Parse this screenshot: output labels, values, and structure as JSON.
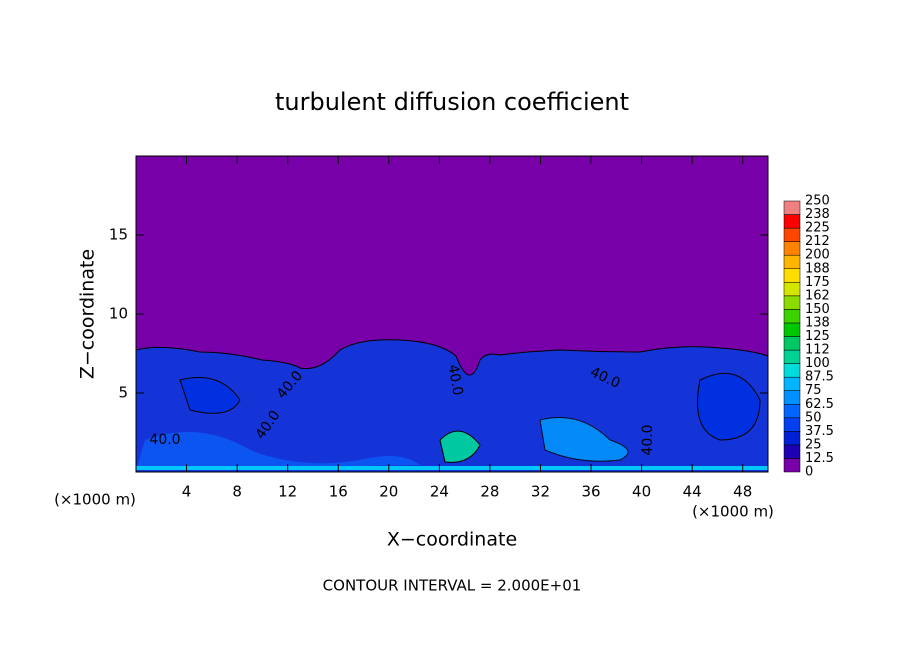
{
  "chart_data": {
    "type": "contour",
    "title": "turbulent diffusion coefficient",
    "x_label": "X−coordinate",
    "y_label": "Z−coordinate",
    "x_unit_label": "(×1000 m)",
    "y_unit_label": "(×1000 m)",
    "footnote": "CONTOUR INTERVAL = 2.000E+01",
    "xlim": [
      0,
      50
    ],
    "ylim": [
      0,
      20
    ],
    "xticks": [
      4,
      8,
      12,
      16,
      20,
      24,
      28,
      32,
      36,
      40,
      44,
      48
    ],
    "yticks": [
      5,
      10,
      15
    ],
    "contour_labels": [
      "40.0",
      "40.0",
      "40.0",
      "40.0",
      "40.0",
      "40.0"
    ],
    "colorbar_levels": [
      0,
      12.5,
      25,
      37.5,
      50,
      62.5,
      75,
      87.5,
      100,
      {
        "value": 112.5,
        "label": "112"
      },
      125,
      {
        "value": 137.5,
        "label": "138"
      },
      150,
      {
        "value": 162.5,
        "label": "162"
      },
      175,
      {
        "value": 187.5,
        "label": "188"
      },
      200,
      {
        "value": 212.5,
        "label": "212"
      },
      225,
      {
        "value": 237.5,
        "label": "238"
      },
      250
    ],
    "colorbar_colors": [
      "#7800a8",
      "#1e00b4",
      "#0020d8",
      "#0040f0",
      "#0064ff",
      "#0090ff",
      "#00b4ff",
      "#00dcdc",
      "#00d296",
      "#00c864",
      "#00c800",
      "#3cd200",
      "#8cdc00",
      "#d2e600",
      "#ffdc00",
      "#ffb400",
      "#ff8200",
      "#ff4600",
      "#ff0000",
      "#f08080"
    ]
  }
}
